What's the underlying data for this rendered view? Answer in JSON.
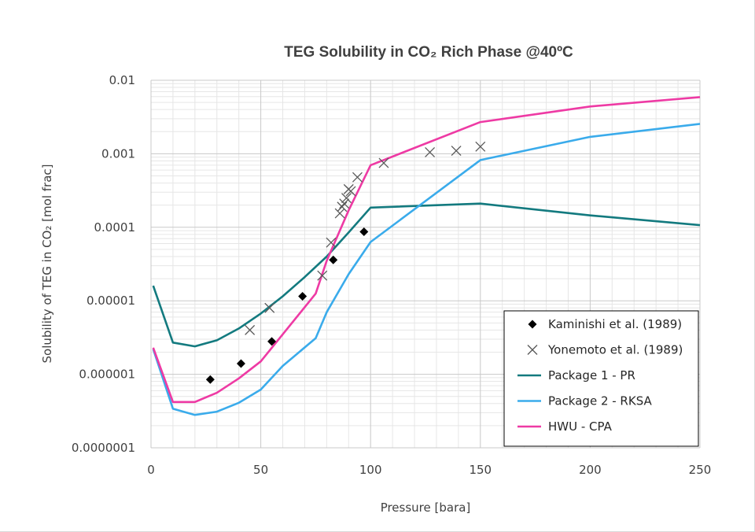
{
  "chart_data": {
    "type": "line",
    "title": "TEG Solubility in CO₂ Rich Phase @40ºC",
    "xlabel": "Pressure [bara]",
    "ylabel": "Solubility of TEG in CO₂ [mol frac]",
    "xlim": [
      0,
      250
    ],
    "ylim": [
      1e-07,
      0.01
    ],
    "yscale": "log",
    "x_ticks": [
      0,
      50,
      100,
      150,
      200,
      250
    ],
    "x_tick_labels": [
      "0",
      "50",
      "100",
      "150",
      "200",
      "250"
    ],
    "y_ticks": [
      1e-07,
      1e-06,
      1e-05,
      0.0001,
      0.001,
      0.01
    ],
    "y_tick_labels": [
      "0.0000001",
      "0.000001",
      "0.00001",
      "0.0001",
      "0.001",
      "0.01"
    ],
    "grid": "major and minor",
    "legend_position": "bottom-right",
    "series": [
      {
        "name": "Kaminishi et al. (1989)",
        "kind": "scatter",
        "marker": "diamond",
        "color": "#000000",
        "x": [
          27,
          41,
          55,
          69,
          83,
          97
        ],
        "y": [
          8.5e-07,
          1.4e-06,
          2.8e-06,
          1.15e-05,
          3.6e-05,
          8.7e-05
        ]
      },
      {
        "name": "Yonemoto et al. (1989)",
        "kind": "scatter",
        "marker": "x",
        "color": "#595959",
        "x": [
          45,
          54,
          78,
          82,
          86,
          87,
          88,
          89,
          90,
          91,
          94,
          106,
          127,
          139,
          150
        ],
        "y": [
          4e-06,
          8e-06,
          2.2e-05,
          6.2e-05,
          0.000155,
          0.00019,
          0.00021,
          0.00025,
          0.00033,
          0.00031,
          0.00048,
          0.00075,
          0.00105,
          0.0011,
          0.00125
        ]
      },
      {
        "name": "Package 1 - PR",
        "kind": "line",
        "color": "#137a7f",
        "x": [
          1,
          10,
          20,
          30,
          40,
          50,
          60,
          70,
          80,
          90,
          100,
          150,
          200,
          250
        ],
        "y": [
          1.6e-05,
          2.7e-06,
          2.4e-06,
          2.9e-06,
          4.2e-06,
          6.7e-06,
          1.15e-05,
          2.1e-05,
          4e-05,
          8.5e-05,
          0.000185,
          0.00021,
          0.000145,
          0.000107
        ]
      },
      {
        "name": "Package 2 - RKSA",
        "kind": "line",
        "color": "#3aabeb",
        "x": [
          1,
          10,
          20,
          30,
          40,
          50,
          60,
          75,
          80,
          90,
          100,
          150,
          200,
          250
        ],
        "y": [
          2.2e-06,
          3.4e-07,
          2.8e-07,
          3.1e-07,
          4.1e-07,
          6.2e-07,
          1.3e-06,
          3.1e-06,
          7e-06,
          2.3e-05,
          6.3e-05,
          0.00082,
          0.0017,
          0.00255
        ]
      },
      {
        "name": "HWU - CPA",
        "kind": "line",
        "color": "#ee3aa4",
        "x": [
          1,
          10,
          20,
          30,
          40,
          50,
          60,
          75,
          80,
          90,
          100,
          150,
          200,
          250
        ],
        "y": [
          2.3e-06,
          4.2e-07,
          4.2e-07,
          5.6e-07,
          8.8e-07,
          1.5e-06,
          3.5e-06,
          1.25e-05,
          3.5e-05,
          0.00017,
          0.0007,
          0.0027,
          0.0044,
          0.0059
        ]
      }
    ]
  }
}
